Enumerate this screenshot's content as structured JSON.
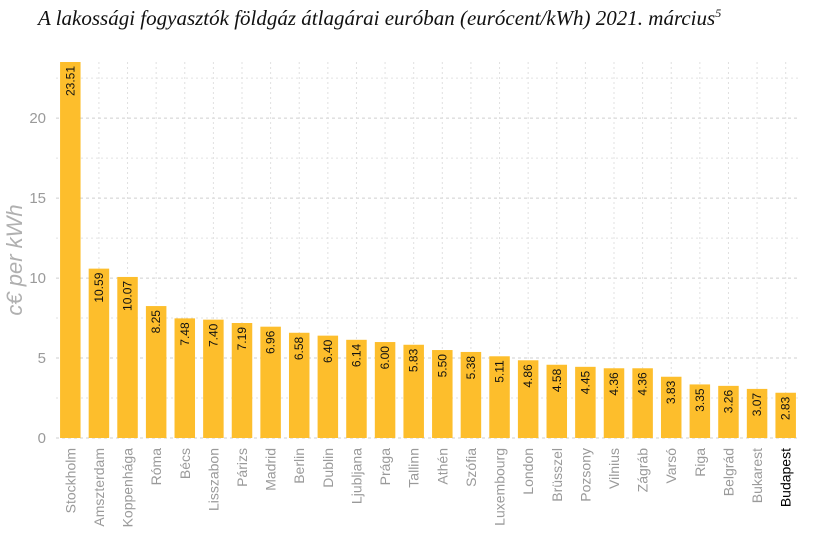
{
  "chart_data": {
    "type": "bar",
    "title": "A lakossági fogyasztók földgáz átlagárai euróban (eurócent/kWh) 2021. március",
    "title_footnote": "5",
    "ylabel": "c€ per kWh",
    "xlabel": "",
    "ylim": [
      0,
      23.51
    ],
    "yticks": [
      0,
      5,
      10,
      15,
      20
    ],
    "grid": true,
    "bar_color": "#FDBE2C",
    "highlight_label_color": "#000000",
    "label_color": "#9a9a9a",
    "highlight_category": "Budapest",
    "categories": [
      "Stockholm",
      "Amszterdam",
      "Koppenhága",
      "Róma",
      "Bécs",
      "Lisszabon",
      "Párizs",
      "Madrid",
      "Berlin",
      "Dublin",
      "Ljubljana",
      "Prága",
      "Tallinn",
      "Athén",
      "Szófia",
      "Luxembourg",
      "London",
      "Brüsszel",
      "Pozsony",
      "Vilnius",
      "Zágráb",
      "Varsó",
      "Riga",
      "Belgrád",
      "Bukarest",
      "Budapest"
    ],
    "values": [
      23.51,
      10.59,
      10.07,
      8.25,
      7.48,
      7.4,
      7.19,
      6.96,
      6.58,
      6.4,
      6.14,
      6.0,
      5.83,
      5.5,
      5.38,
      5.11,
      4.86,
      4.58,
      4.45,
      4.36,
      4.36,
      3.83,
      3.35,
      3.26,
      3.07,
      2.83
    ],
    "value_labels": [
      "23.51",
      "10.59",
      "10.07",
      "8.25",
      "7.48",
      "7.40",
      "7.19",
      "6.96",
      "6.58",
      "6.40",
      "6.14",
      "6.00",
      "5.83",
      "5.50",
      "5.38",
      "5.11",
      "4.86",
      "4.58",
      "4.45",
      "4.36",
      "4.36",
      "3.83",
      "3.35",
      "3.26",
      "3.07",
      "2.83"
    ]
  }
}
